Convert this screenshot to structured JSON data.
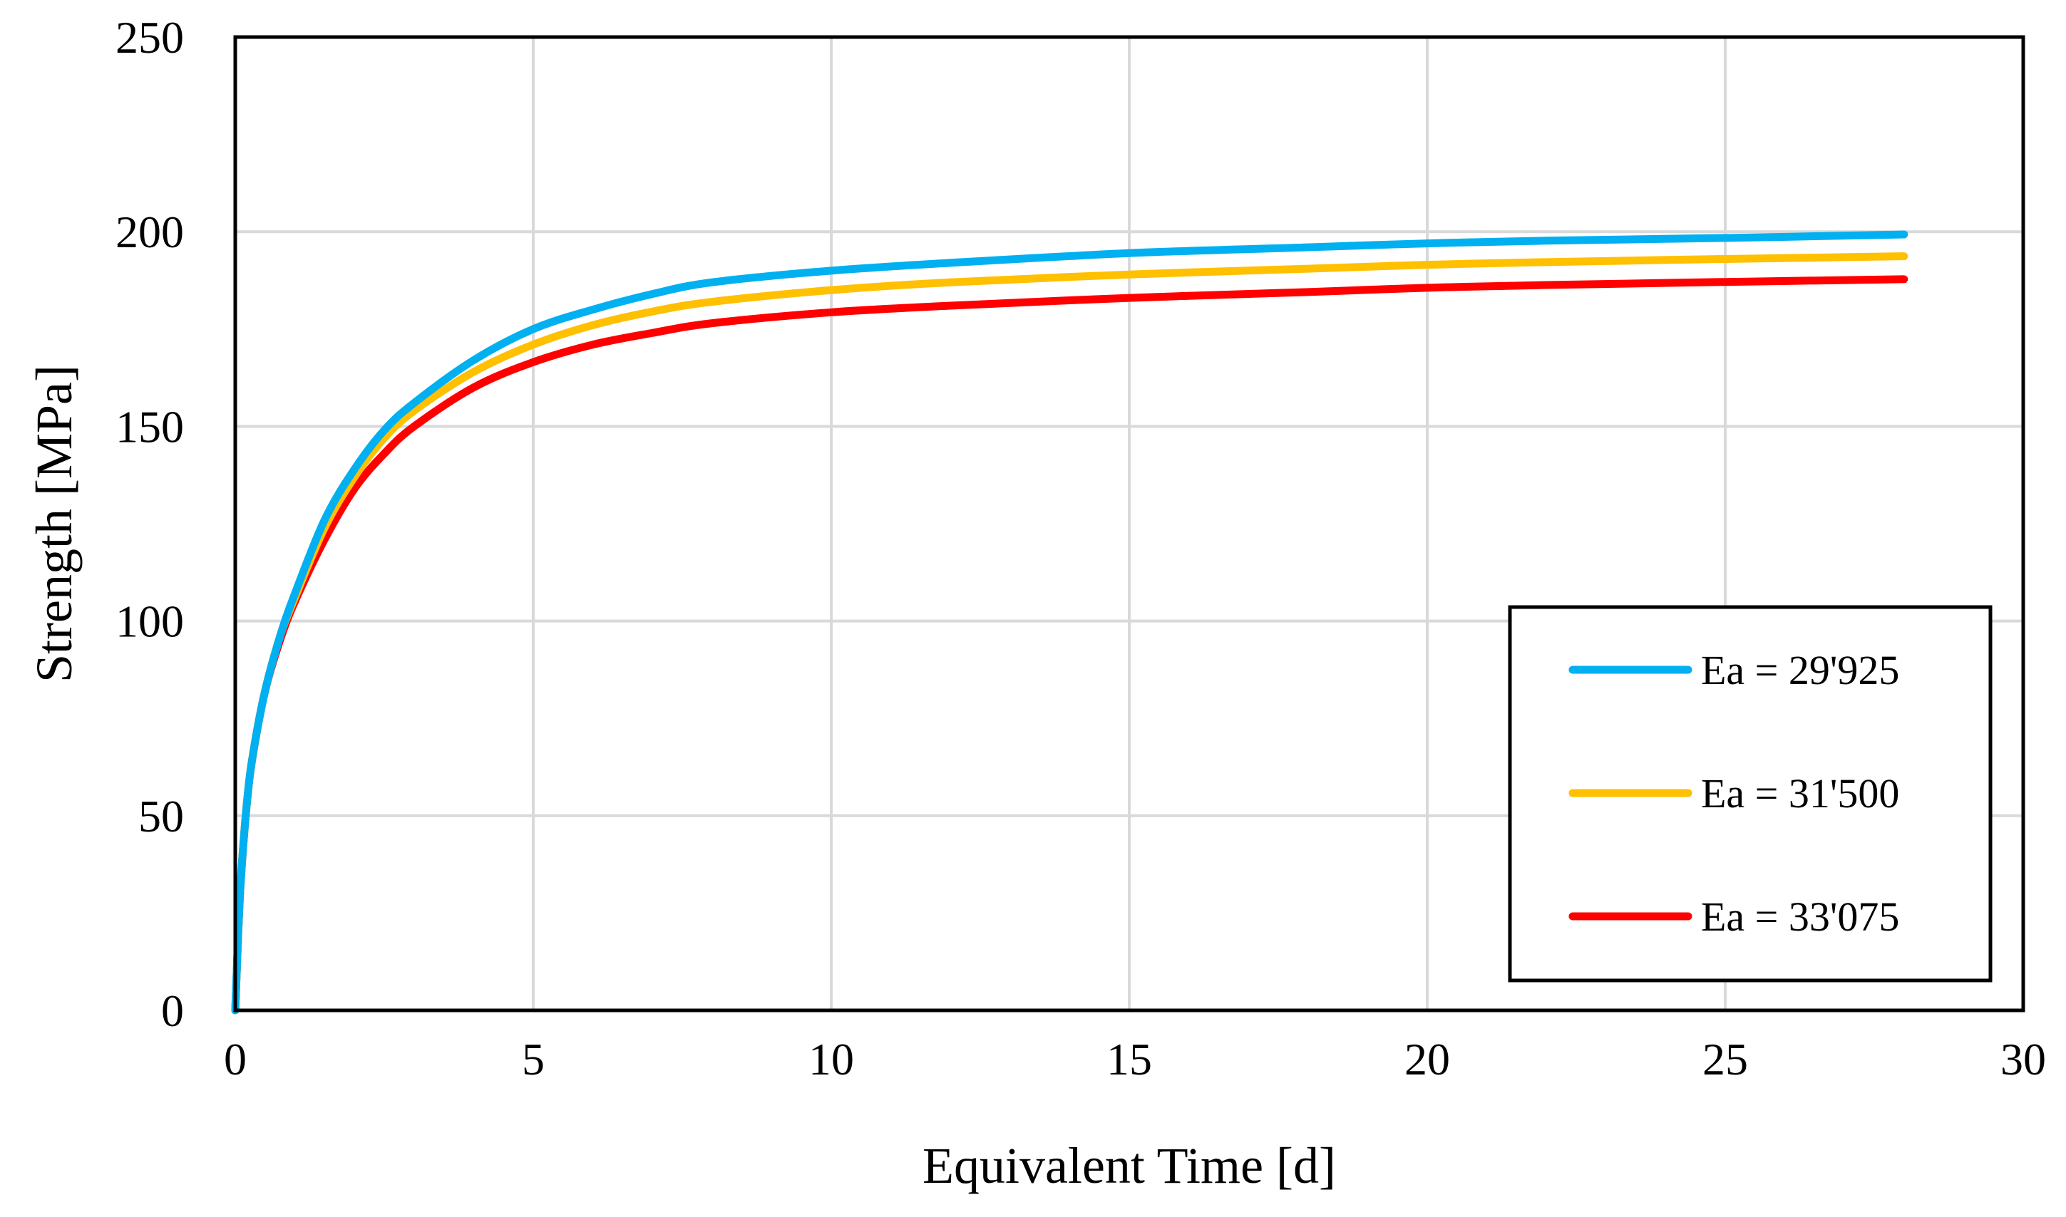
{
  "chart_data": {
    "type": "line",
    "title": "",
    "xlabel": "Equivalent Time [d]",
    "ylabel": "Strength [MPa]",
    "xlim": [
      0,
      30
    ],
    "ylim": [
      0,
      250
    ],
    "x_ticks": [
      0,
      5,
      10,
      15,
      20,
      25,
      30
    ],
    "y_ticks": [
      0,
      50,
      100,
      150,
      200,
      250
    ],
    "grid": true,
    "legend_position": "right",
    "x": [
      0,
      0.02,
      0.05,
      0.1,
      0.2,
      0.3,
      0.5,
      0.75,
      1,
      1.5,
      2,
      2.5,
      3,
      4,
      5,
      6,
      7,
      8,
      10,
      12,
      15,
      18,
      20,
      22,
      25,
      28
    ],
    "series": [
      {
        "name": "Ea = 29'925",
        "color": "#00b0f0",
        "values": [
          0,
          8,
          20,
          35,
          54,
          66,
          82,
          96,
          107,
          126,
          139,
          149,
          156,
          167,
          175,
          180,
          184,
          187,
          190,
          192,
          194.5,
          196,
          197,
          197.7,
          198.4,
          199.3
        ]
      },
      {
        "name": "Ea = 31'500",
        "color": "#ffc000",
        "values": [
          0,
          8,
          20,
          35,
          54,
          66,
          82,
          96,
          106,
          124,
          137,
          147,
          154,
          164,
          171,
          176,
          179.5,
          182,
          185,
          187,
          189,
          190.5,
          191.5,
          192.2,
          193,
          193.7
        ]
      },
      {
        "name": "Ea = 33'075",
        "color": "#ff0000",
        "values": [
          0,
          8,
          20,
          35,
          54,
          66,
          82,
          95,
          105,
          121,
          134,
          143,
          150,
          160,
          166.5,
          171,
          174,
          176.5,
          179.3,
          181,
          183,
          184.5,
          185.6,
          186.3,
          187.1,
          187.8
        ]
      }
    ]
  }
}
